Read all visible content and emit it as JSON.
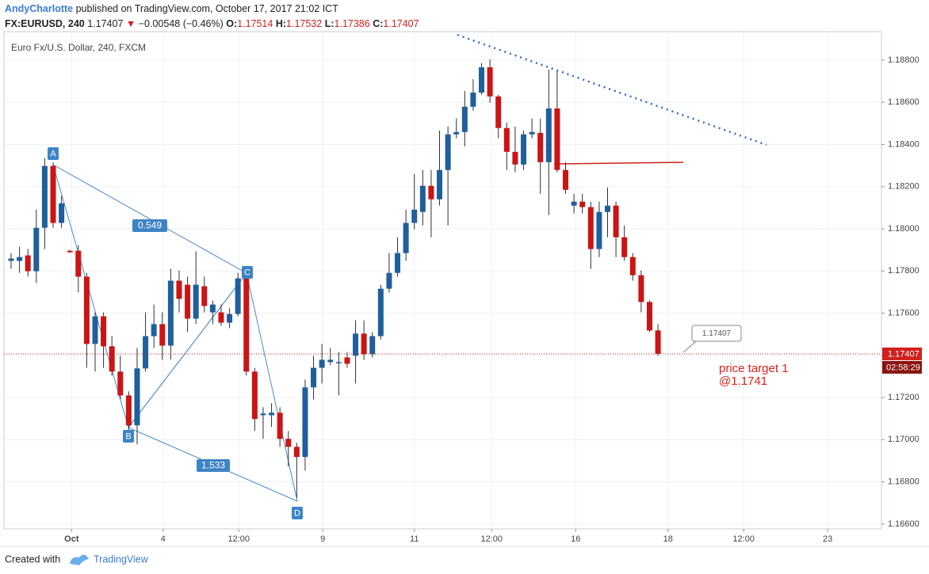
{
  "header": {
    "user": "AndyCharlotte",
    "published": "published on TradingView.com, October 17, 2017 21:02 ICT",
    "symbol": "FX:EURUSD, 240",
    "price": "1.17407",
    "arrow": "▼",
    "change": "−0.00548 (−0.46%)",
    "o_label": "O:",
    "o": "1.17514",
    "h_label": "H:",
    "h": "1.17532",
    "l_label": "L:",
    "l": "1.17386",
    "c_label": "C:",
    "c": "1.17407"
  },
  "chart_data": {
    "type": "candlestick",
    "title": "Euro Fx/U.S. Dollar, 240, FXCM",
    "x": [
      0,
      1,
      2,
      3,
      4,
      5,
      6,
      7,
      8,
      9,
      10,
      11,
      12,
      13,
      14,
      15,
      16,
      17,
      18,
      19,
      20,
      21,
      22,
      23,
      24,
      25,
      26,
      27,
      28,
      29,
      30,
      31,
      32,
      33,
      34,
      35,
      36,
      37,
      38,
      39,
      40,
      41,
      42,
      43,
      44,
      45,
      46,
      47,
      48,
      49,
      50,
      51,
      52,
      53,
      54,
      55,
      56,
      57,
      58,
      59,
      60,
      61,
      62,
      63,
      64,
      65,
      66,
      67,
      68,
      69,
      70,
      71,
      72,
      73,
      74,
      75,
      76,
      77
    ],
    "open": [
      1.17848,
      1.17848,
      1.17874,
      1.17799,
      1.18005,
      1.18298,
      1.18028,
      1.17896,
      1.17896,
      1.17773,
      1.17454,
      1.17585,
      1.17443,
      1.17323,
      1.1721,
      1.17068,
      1.17338,
      1.17491,
      1.17548,
      1.17446,
      1.17754,
      1.17735,
      1.17574,
      1.17728,
      1.17604,
      1.17604,
      1.17555,
      1.17596,
      1.17765,
      1.17323,
      1.17116,
      1.17116,
      1.17128,
      1.17004,
      1.16966,
      1.16918,
      1.17248,
      1.17341,
      1.17368,
      1.17368,
      1.1739,
      1.17398,
      1.17503,
      1.17405,
      1.17491,
      1.17716,
      1.17791,
      1.17885,
      1.18028,
      1.1808,
      1.18204,
      1.1814,
      1.18279,
      1.18448,
      1.18459,
      1.18579,
      1.18646,
      1.18766,
      1.18628,
      1.18478,
      1.18365,
      1.18305,
      1.18448,
      1.18455,
      1.18316,
      1.18571,
      1.18279,
      1.1811,
      1.18129,
      1.18103,
      1.17904,
      1.1808,
      1.1811,
      1.1796,
      1.17866,
      1.1778,
      1.17653,
      1.17518
    ],
    "high": [
      1.17885,
      1.17915,
      1.17904,
      1.18091,
      1.18335,
      1.18316,
      1.18155,
      1.179,
      1.17923,
      1.17791,
      1.17604,
      1.17604,
      1.17491,
      1.17398,
      1.17229,
      1.17435,
      1.17604,
      1.17641,
      1.17604,
      1.1781,
      1.17803,
      1.17773,
      1.17893,
      1.17773,
      1.1766,
      1.17641,
      1.17623,
      1.17791,
      1.17791,
      1.17341,
      1.17154,
      1.17173,
      1.17154,
      1.17041,
      1.16985,
      1.17285,
      1.17398,
      1.17454,
      1.17435,
      1.17416,
      1.17416,
      1.17566,
      1.17566,
      1.1751,
      1.17735,
      1.17885,
      1.1796,
      1.18091,
      1.1826,
      1.18279,
      1.18279,
      1.18466,
      1.18485,
      1.18523,
      1.18654,
      1.1871,
      1.18785,
      1.18804,
      1.18635,
      1.18504,
      1.18485,
      1.18466,
      1.18523,
      1.18523,
      1.18755,
      1.18748,
      1.18316,
      1.18166,
      1.18166,
      1.18129,
      1.18129,
      1.18196,
      1.18129,
      1.18016,
      1.17885,
      1.17803,
      1.1766,
      1.17548
    ],
    "low": [
      1.1781,
      1.17791,
      1.17773,
      1.17743,
      1.17904,
      1.18005,
      1.18005,
      1.17885,
      1.17698,
      1.17341,
      1.17323,
      1.17341,
      1.17304,
      1.17191,
      1.17041,
      1.16978,
      1.17323,
      1.17435,
      1.17379,
      1.17379,
      1.17604,
      1.1751,
      1.17548,
      1.17604,
      1.17548,
      1.1754,
      1.17529,
      1.17585,
      1.17304,
      1.17041,
      1.17004,
      1.1706,
      1.16966,
      1.16873,
      1.16723,
      1.16854,
      1.17191,
      1.17266,
      1.17353,
      1.1721,
      1.17341,
      1.17266,
      1.17379,
      1.1739,
      1.17473,
      1.17698,
      1.17773,
      1.17848,
      1.17998,
      1.18016,
      1.1796,
      1.1811,
      1.18016,
      1.18429,
      1.18391,
      1.1856,
      1.18635,
      1.18598,
      1.18429,
      1.18279,
      1.18268,
      1.18279,
      1.18429,
      1.18166,
      1.18065,
      1.18268,
      1.18166,
      1.18073,
      1.18073,
      1.1781,
      1.17866,
      1.1796,
      1.17866,
      1.17848,
      1.17754,
      1.17604,
      1.1751,
      1.17398
    ],
    "close": [
      1.17859,
      1.17866,
      1.17799,
      1.18005,
      1.18298,
      1.18028,
      1.18121,
      1.17889,
      1.17773,
      1.17454,
      1.17585,
      1.17443,
      1.17323,
      1.1721,
      1.17068,
      1.17338,
      1.17491,
      1.17548,
      1.17446,
      1.17754,
      1.17668,
      1.17574,
      1.17735,
      1.17634,
      1.17641,
      1.17555,
      1.17596,
      1.17765,
      1.17323,
      1.17098,
      1.17124,
      1.17128,
      1.17004,
      1.16966,
      1.16918,
      1.17248,
      1.17341,
      1.17379,
      1.17379,
      1.17368,
      1.1736,
      1.17503,
      1.17405,
      1.17491,
      1.17716,
      1.17791,
      1.17885,
      1.18028,
      1.18091,
      1.18204,
      1.1814,
      1.18279,
      1.18448,
      1.18459,
      1.18579,
      1.18646,
      1.18766,
      1.18628,
      1.18478,
      1.18365,
      1.18305,
      1.18448,
      1.18459,
      1.18316,
      1.18571,
      1.18279,
      1.18185,
      1.18129,
      1.18103,
      1.17904,
      1.1808,
      1.1811,
      1.1796,
      1.17866,
      1.1778,
      1.17653,
      1.17518,
      1.17407
    ],
    "up_color": "#1f5f9b",
    "down_color": "#cc1414",
    "ylim": [
      1.16577,
      1.18935
    ],
    "yticks": [
      {
        "value": 1.188,
        "label": "1.18800"
      },
      {
        "value": 1.186,
        "label": "1.18600"
      },
      {
        "value": 1.184,
        "label": "1.18400"
      },
      {
        "value": 1.182,
        "label": "1.18200"
      },
      {
        "value": 1.18,
        "label": "1.18000"
      },
      {
        "value": 1.178,
        "label": "1.17800"
      },
      {
        "value": 1.176,
        "label": "1.17600"
      },
      {
        "value": 1.174,
        "label": "1.17400"
      },
      {
        "value": 1.172,
        "label": "1.17200"
      },
      {
        "value": 1.17,
        "label": "1.17000"
      },
      {
        "value": 1.168,
        "label": "1.16800"
      },
      {
        "value": 1.166,
        "label": "1.16600"
      }
    ],
    "xlim": [
      -0.85,
      103.6
    ],
    "xticks": [
      {
        "value": 7.2,
        "label": "Oct"
      },
      {
        "value": 18.1,
        "label": "4"
      },
      {
        "value": 27.1,
        "label": "12:00"
      },
      {
        "value": 37.1,
        "label": "9"
      },
      {
        "value": 48,
        "label": "11"
      },
      {
        "value": 57.2,
        "label": "12:00"
      },
      {
        "value": 67.2,
        "label": "16"
      },
      {
        "value": 78.2,
        "label": "18"
      },
      {
        "value": 87.2,
        "label": "12:00"
      },
      {
        "value": 97.2,
        "label": "23"
      }
    ],
    "grid": true,
    "last_price": 1.17407,
    "countdown": "02:58:29",
    "callout": "1.17407",
    "points": [
      "A",
      "B",
      "C",
      "D"
    ],
    "ratios": [
      "0.549",
      "1.533"
    ],
    "target": [
      "price target 1",
      "@1.1741"
    ]
  },
  "footer": {
    "created": "Created with",
    "brand": "TradingView"
  }
}
